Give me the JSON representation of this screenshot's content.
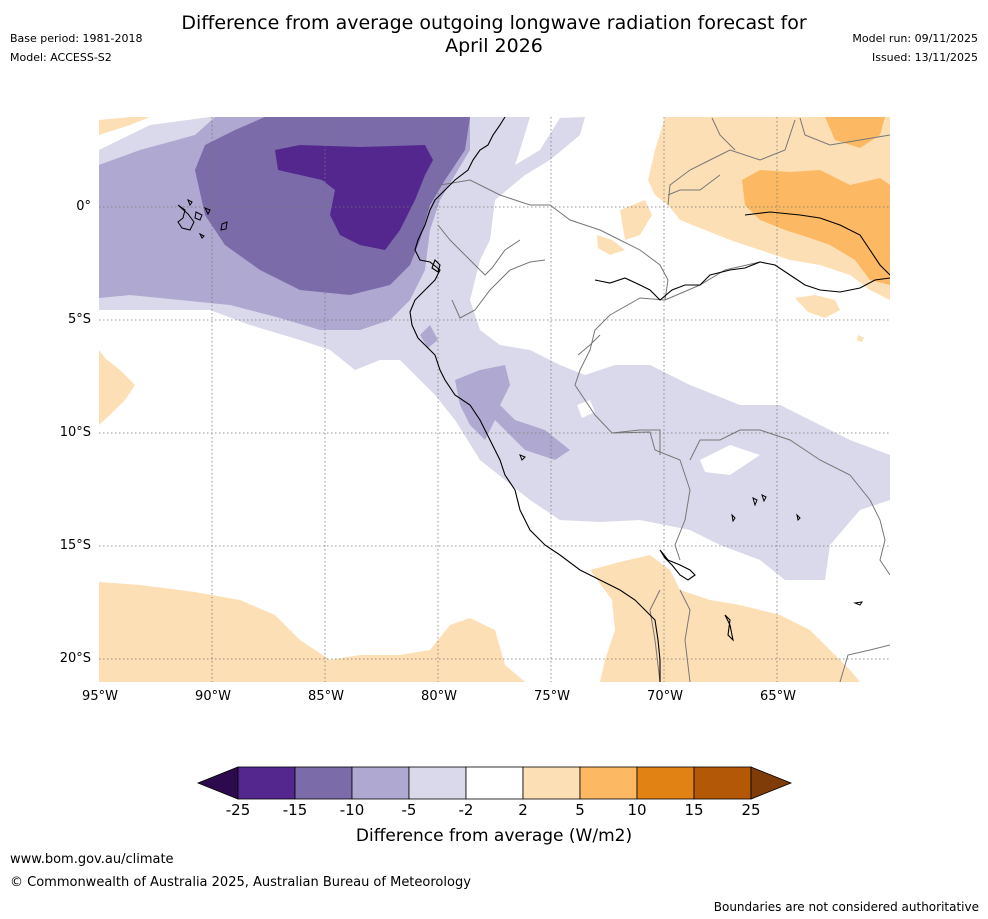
{
  "header": {
    "base_period": "Base period: 1981-2018",
    "model": "Model: ACCESS-S2",
    "title_line1": "Difference from average outgoing longwave radiation forecast for",
    "title_line2": "April 2026",
    "model_run": "Model run: 09/11/2025",
    "issued": "Issued: 13/11/2025"
  },
  "map": {
    "lon_labels": [
      "95°W",
      "90°W",
      "85°W",
      "80°W",
      "75°W",
      "70°W",
      "65°W"
    ],
    "lat_labels": [
      "0°",
      "5°S",
      "10°S",
      "15°S",
      "20°S"
    ],
    "lon_range": [
      -95,
      -60
    ],
    "lat_range": [
      -21,
      4
    ]
  },
  "colorbar": {
    "ticks": [
      "-25",
      "-15",
      "-10",
      "-5",
      "-2",
      "2",
      "5",
      "10",
      "15",
      "25"
    ],
    "label": "Difference from average (W/m2)",
    "colors": {
      "below": "#2d0a4e",
      "c1": "#54278f",
      "c2": "#7b6ba8",
      "c3": "#afa8d0",
      "c4": "#d9d9eb",
      "c5": "#ffffff",
      "c6": "#fddfb5",
      "c7": "#fdb863",
      "c8": "#e08214",
      "c9": "#b35806",
      "above": "#7f3b08"
    }
  },
  "footer": {
    "website": "www.bom.gov.au/climate",
    "copyright": "© Commonwealth of Australia 2025, Australian Bureau of Meteorology",
    "disclaimer": "Boundaries are not considered authoritative"
  }
}
